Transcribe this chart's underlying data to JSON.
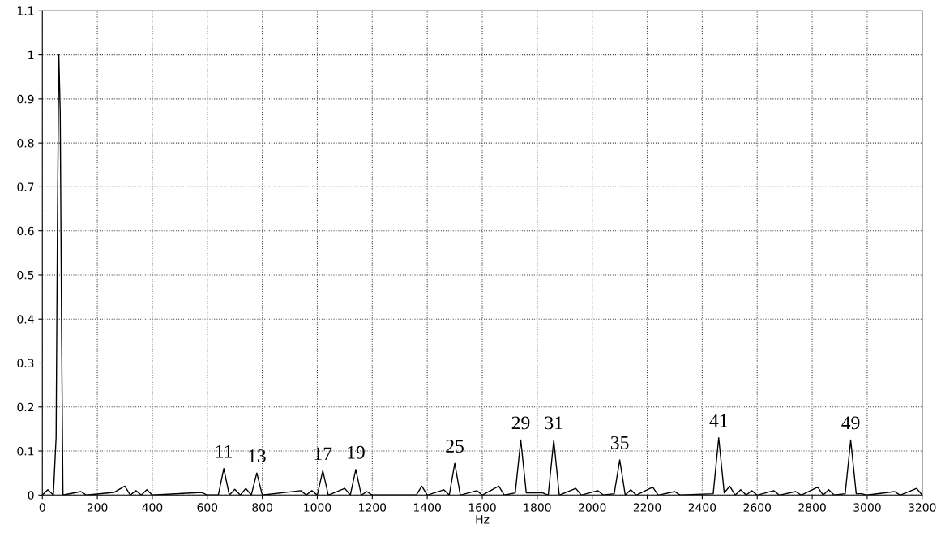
{
  "chart_data": {
    "type": "line",
    "xlabel": "Hz",
    "x": [
      0,
      20,
      40,
      50,
      55,
      60,
      65,
      70,
      75,
      140,
      160,
      260,
      300,
      320,
      340,
      360,
      380,
      400,
      580,
      600,
      640,
      660,
      680,
      700,
      720,
      740,
      760,
      780,
      800,
      940,
      960,
      980,
      1000,
      1020,
      1040,
      1100,
      1120,
      1140,
      1160,
      1180,
      1200,
      1360,
      1380,
      1400,
      1460,
      1480,
      1500,
      1520,
      1580,
      1600,
      1660,
      1680,
      1720,
      1740,
      1760,
      1820,
      1840,
      1860,
      1880,
      1940,
      1960,
      2020,
      2040,
      2080,
      2100,
      2120,
      2140,
      2160,
      2220,
      2240,
      2300,
      2320,
      2440,
      2460,
      2480,
      2500,
      2520,
      2540,
      2560,
      2580,
      2600,
      2660,
      2680,
      2740,
      2760,
      2820,
      2840,
      2860,
      2880,
      2920,
      2940,
      2960,
      2980,
      3000,
      3100,
      3120,
      3180,
      3200
    ],
    "series": [
      {
        "color": "#000000",
        "values": [
          0,
          0.012,
          0,
          0.13,
          0.63,
          1.0,
          0.87,
          0.37,
          0,
          0.008,
          0,
          0.006,
          0.02,
          0,
          0.01,
          0,
          0.012,
          0,
          0.006,
          0,
          0,
          0.06,
          0,
          0.013,
          0,
          0.015,
          0,
          0.05,
          0,
          0.01,
          0,
          0.01,
          0,
          0.055,
          0,
          0.015,
          0,
          0.058,
          0,
          0.008,
          0,
          0,
          0.02,
          0,
          0.012,
          0,
          0.072,
          0,
          0.01,
          0,
          0.02,
          0,
          0.005,
          0.125,
          0.005,
          0.005,
          0,
          0.125,
          0,
          0.015,
          0,
          0.01,
          0,
          0.003,
          0.08,
          0,
          0.012,
          0,
          0.018,
          0,
          0.008,
          0,
          0.003,
          0.13,
          0.005,
          0.02,
          0,
          0.012,
          0,
          0.01,
          0,
          0.01,
          0,
          0.008,
          0,
          0.018,
          0,
          0.012,
          0,
          0.003,
          0.125,
          0.003,
          0.003,
          0,
          0.008,
          0,
          0.015,
          0
        ]
      }
    ],
    "xlim": [
      0,
      3200
    ],
    "xticks": [
      0,
      200,
      400,
      600,
      800,
      1000,
      1200,
      1400,
      1600,
      1800,
      2000,
      2200,
      2400,
      2600,
      2800,
      3000,
      3200
    ],
    "ylim": [
      0,
      1.1
    ],
    "yticks": [
      0,
      0.1,
      0.2,
      0.3,
      0.4,
      0.5,
      0.6,
      0.7,
      0.8,
      0.9,
      1,
      1.1
    ],
    "grid": true,
    "line_style": "solid",
    "marker": "none",
    "annotations": [
      {
        "text": "11",
        "x": 660,
        "y": 0.06
      },
      {
        "text": "13",
        "x": 780,
        "y": 0.05
      },
      {
        "text": "17",
        "x": 1020,
        "y": 0.055
      },
      {
        "text": "19",
        "x": 1140,
        "y": 0.058
      },
      {
        "text": "25",
        "x": 1500,
        "y": 0.072
      },
      {
        "text": "29",
        "x": 1740,
        "y": 0.125
      },
      {
        "text": "31",
        "x": 1860,
        "y": 0.125
      },
      {
        "text": "35",
        "x": 2100,
        "y": 0.08
      },
      {
        "text": "41",
        "x": 2460,
        "y": 0.13
      },
      {
        "text": "49",
        "x": 2940,
        "y": 0.125
      }
    ]
  }
}
